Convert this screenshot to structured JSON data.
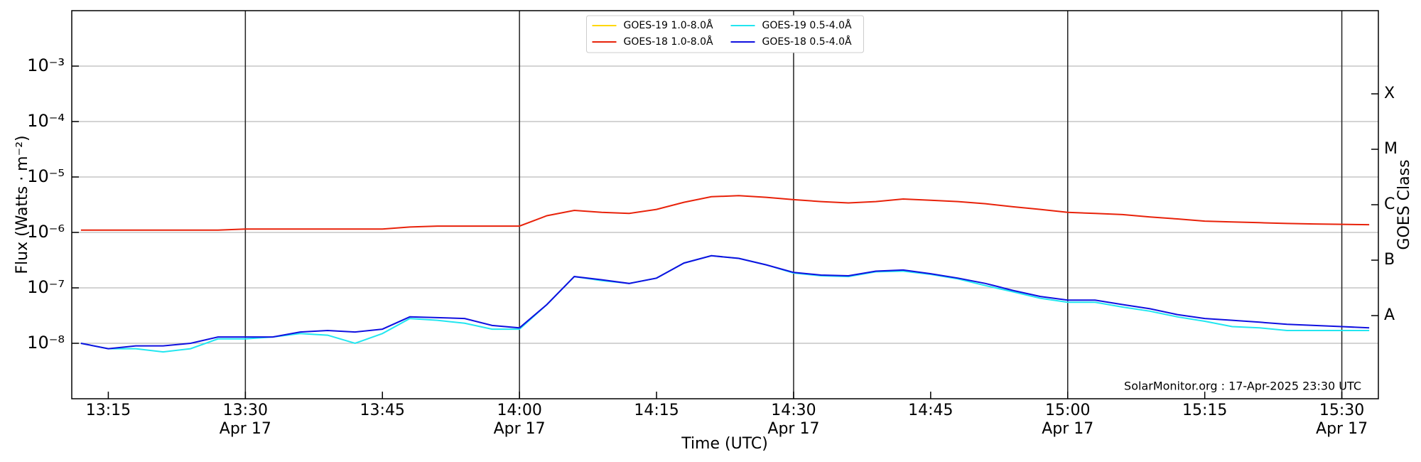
{
  "chart_data": {
    "type": "line",
    "ylabel": "Flux (Watts · m⁻²)",
    "xlabel": "Time (UTC)",
    "y2label": "GOES Class",
    "annotation": "SolarMonitor.org : 17-Apr-2025 23:30 UTC",
    "log_y": true,
    "grid": true,
    "legend": "upper center",
    "legend_columns": 2,
    "xlim": [
      "13:11",
      "15:34"
    ],
    "xticks": [
      "13:15",
      {
        "value": "13:30",
        "label": "13:30\nApr 17"
      },
      "13:45",
      {
        "value": "14:00",
        "label": "14:00\nApr 17"
      },
      "14:15",
      {
        "value": "14:30",
        "label": "14:30\nApr 17"
      },
      "14:45",
      {
        "value": "15:00",
        "label": "15:00\nApr 17"
      },
      "15:15",
      {
        "value": "15:30",
        "label": "15:30\nApr 17"
      }
    ],
    "ylim": [
      1e-09,
      0.01
    ],
    "yticks": [
      {
        "value": 1e-08,
        "label": "10⁻⁸"
      },
      {
        "value": 1e-07,
        "label": "10⁻⁷"
      },
      {
        "value": 1e-06,
        "label": "10⁻⁶"
      },
      {
        "value": 1e-05,
        "label": "10⁻⁵"
      },
      {
        "value": 0.0001,
        "label": "10⁻⁴"
      },
      {
        "value": 0.001,
        "label": "10⁻³"
      }
    ],
    "y2lim": [
      1e-09,
      0.01
    ],
    "y2ticks": [
      {
        "value": 3.16e-08,
        "label": "A"
      },
      {
        "value": 3.16e-07,
        "label": "B"
      },
      {
        "value": 3.16e-06,
        "label": "C"
      },
      {
        "value": 3.16e-05,
        "label": "M"
      },
      {
        "value": 0.000316,
        "label": "X"
      }
    ],
    "x": [
      "13:12",
      "13:15",
      "13:18",
      "13:21",
      "13:24",
      "13:27",
      "13:30",
      "13:33",
      "13:36",
      "13:39",
      "13:42",
      "13:45",
      "13:48",
      "13:51",
      "13:54",
      "13:57",
      "14:00",
      "14:03",
      "14:06",
      "14:09",
      "14:12",
      "14:15",
      "14:18",
      "14:21",
      "14:24",
      "14:27",
      "14:30",
      "14:33",
      "14:36",
      "14:39",
      "14:42",
      "14:45",
      "14:48",
      "14:51",
      "14:54",
      "14:57",
      "15:00",
      "15:03",
      "15:06",
      "15:09",
      "15:12",
      "15:15",
      "15:18",
      "15:21",
      "15:24",
      "15:27",
      "15:30",
      "15:33"
    ],
    "series": [
      {
        "name": "GOES-19 1.0-8.0Å",
        "color": "#ffd700",
        "values": [
          null,
          null,
          null,
          null,
          null,
          null,
          null,
          null,
          null,
          null,
          null,
          null,
          null,
          null,
          null,
          null,
          null,
          null,
          null,
          null,
          null,
          null,
          null,
          null,
          null,
          null,
          null,
          null,
          null,
          null,
          null,
          null,
          null,
          null,
          null,
          null,
          null,
          null,
          null,
          null,
          null,
          null,
          null,
          null,
          null,
          null,
          null,
          null
        ]
      },
      {
        "name": "GOES-18 1.0-8.0Å",
        "color": "#e8220a",
        "values": [
          1.1e-06,
          1.1e-06,
          1.1e-06,
          1.1e-06,
          1.1e-06,
          1.1e-06,
          1.15e-06,
          1.15e-06,
          1.15e-06,
          1.15e-06,
          1.15e-06,
          1.15e-06,
          1.25e-06,
          1.3e-06,
          1.3e-06,
          1.3e-06,
          1.3e-06,
          2e-06,
          2.5e-06,
          2.3e-06,
          2.2e-06,
          2.6e-06,
          3.5e-06,
          4.4e-06,
          4.6e-06,
          4.3e-06,
          3.9e-06,
          3.6e-06,
          3.4e-06,
          3.6e-06,
          4e-06,
          3.8e-06,
          3.6e-06,
          3.3e-06,
          2.9e-06,
          2.6e-06,
          2.3e-06,
          2.2e-06,
          2.1e-06,
          1.9e-06,
          1.75e-06,
          1.6e-06,
          1.55e-06,
          1.5e-06,
          1.45e-06,
          1.42e-06,
          1.4e-06,
          1.38e-06
        ]
      },
      {
        "name": "GOES-19 0.5-4.0Å",
        "color": "#22e6f0",
        "values": [
          1e-08,
          8e-09,
          8e-09,
          7e-09,
          8e-09,
          1.2e-08,
          1.2e-08,
          1.3e-08,
          1.5e-08,
          1.4e-08,
          1e-08,
          1.5e-08,
          2.8e-08,
          2.6e-08,
          2.3e-08,
          1.8e-08,
          1.8e-08,
          5e-08,
          1.6e-07,
          1.35e-07,
          1.2e-07,
          1.5e-07,
          2.8e-07,
          3.8e-07,
          3.4e-07,
          2.6e-07,
          1.85e-07,
          1.65e-07,
          1.6e-07,
          1.95e-07,
          2e-07,
          1.75e-07,
          1.45e-07,
          1.1e-07,
          8.5e-08,
          6.5e-08,
          5.5e-08,
          5.5e-08,
          4.5e-08,
          3.8e-08,
          3e-08,
          2.5e-08,
          2e-08,
          1.9e-08,
          1.7e-08,
          1.7e-08,
          1.7e-08,
          1.7e-08
        ]
      },
      {
        "name": "GOES-18 0.5-4.0Å",
        "color": "#1010e0",
        "values": [
          1e-08,
          8e-09,
          9e-09,
          9e-09,
          1e-08,
          1.3e-08,
          1.3e-08,
          1.3e-08,
          1.6e-08,
          1.7e-08,
          1.6e-08,
          1.8e-08,
          3e-08,
          2.9e-08,
          2.8e-08,
          2.1e-08,
          1.9e-08,
          5e-08,
          1.6e-07,
          1.4e-07,
          1.2e-07,
          1.5e-07,
          2.8e-07,
          3.8e-07,
          3.4e-07,
          2.6e-07,
          1.9e-07,
          1.7e-07,
          1.65e-07,
          2e-07,
          2.1e-07,
          1.8e-07,
          1.5e-07,
          1.2e-07,
          9e-08,
          7e-08,
          6e-08,
          6e-08,
          5e-08,
          4.2e-08,
          3.3e-08,
          2.8e-08,
          2.6e-08,
          2.4e-08,
          2.2e-08,
          2.1e-08,
          2e-08,
          1.9e-08
        ]
      }
    ]
  }
}
